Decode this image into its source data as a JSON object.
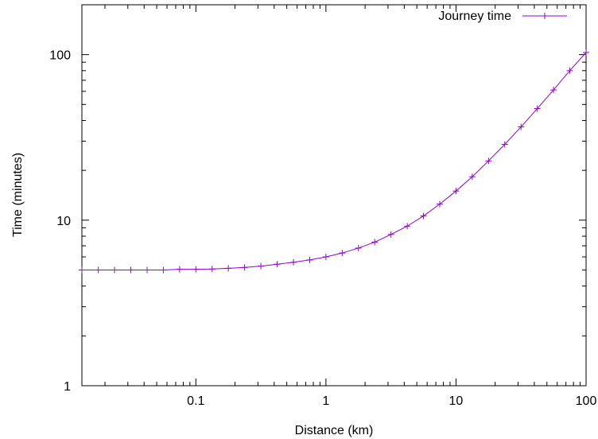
{
  "chart_data": {
    "type": "line",
    "x_scale": "log",
    "y_scale": "log",
    "xlabel": "Distance (km)",
    "ylabel": "Time (minutes)",
    "xlim": [
      0.0133,
      100
    ],
    "ylim": [
      1,
      200
    ],
    "x_ticks": [
      {
        "value": 0.1,
        "label": "0.1"
      },
      {
        "value": 1,
        "label": "1"
      },
      {
        "value": 10,
        "label": "10"
      },
      {
        "value": 100,
        "label": "100"
      }
    ],
    "y_ticks": [
      {
        "value": 1,
        "label": "1"
      },
      {
        "value": 10,
        "label": "10"
      },
      {
        "value": 100,
        "label": "100"
      }
    ],
    "grid": false,
    "legend": "top-right",
    "series": [
      {
        "name": "Journey time",
        "color": "#9400d3",
        "marker": "plus",
        "x": [
          0.0133,
          0.0178,
          0.0237,
          0.0316,
          0.0422,
          0.0562,
          0.075,
          0.1,
          0.1334,
          0.1778,
          0.2371,
          0.3162,
          0.4217,
          0.5623,
          0.7499,
          1.0,
          1.3335,
          1.7783,
          2.3714,
          3.1623,
          4.217,
          5.6234,
          7.4989,
          10.0,
          13.335,
          17.783,
          23.714,
          31.623,
          42.17,
          56.234,
          74.989,
          100.0
        ],
        "y": [
          5.0,
          5.0,
          5.0,
          5.0,
          5.0,
          5.0,
          5.05,
          5.05,
          5.07,
          5.12,
          5.18,
          5.28,
          5.42,
          5.57,
          5.75,
          6.0,
          6.33,
          6.78,
          7.37,
          8.2,
          9.2,
          10.6,
          12.5,
          15.0,
          18.3,
          22.8,
          28.7,
          36.6,
          47.2,
          61.2,
          80.0,
          103.0
        ]
      }
    ]
  }
}
